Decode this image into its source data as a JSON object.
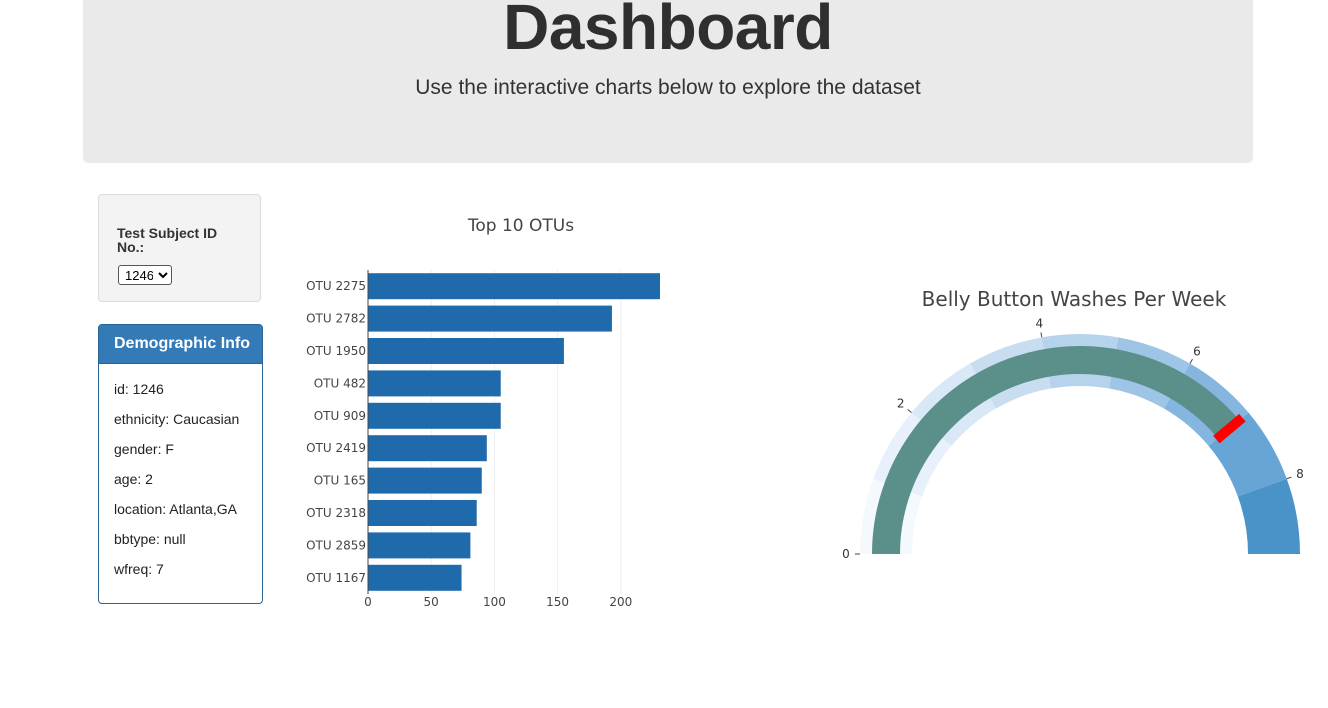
{
  "header": {
    "title": "Dashboard",
    "subtitle": "Use the interactive charts below to explore the dataset"
  },
  "selector": {
    "label": "Test Subject ID No.:",
    "selected": "1246",
    "options": [
      "1246"
    ]
  },
  "demographics": {
    "title": "Demographic Info",
    "rows": [
      "id: 1246",
      "ethnicity: Caucasian",
      "gender: F",
      "age: 2",
      "location: Atlanta,GA",
      "bbtype: null",
      "wfreq: 7"
    ]
  },
  "colors": {
    "bar": "#1f6aab",
    "panel_header": "#337ab7",
    "needle": "#ff0000",
    "gauge_bar": "#5b8f8a"
  },
  "chart_data": [
    {
      "type": "bar",
      "orientation": "horizontal",
      "title": "Top 10 OTUs",
      "categories": [
        "OTU 2275",
        "OTU 2782",
        "OTU 1950",
        "OTU 482",
        "OTU 909",
        "OTU 2419",
        "OTU 165",
        "OTU 2318",
        "OTU 2859",
        "OTU 1167"
      ],
      "values": [
        231,
        193,
        155,
        105,
        105,
        94,
        90,
        86,
        81,
        74
      ],
      "xticks": [
        "0",
        "50",
        "100",
        "150",
        "200"
      ],
      "xlim": [
        0,
        240
      ],
      "grid": true
    },
    {
      "type": "gauge",
      "title": "Belly Button Washes Per Week",
      "value": 7,
      "range": [
        0,
        9
      ],
      "ticks": [
        "0",
        "2",
        "4",
        "6",
        "8"
      ],
      "bands": [
        {
          "from": 0,
          "to": 1,
          "color": "#f4f9fe"
        },
        {
          "from": 1,
          "to": 2,
          "color": "#e8f1fb"
        },
        {
          "from": 2,
          "to": 3,
          "color": "#d9e8f6"
        },
        {
          "from": 3,
          "to": 4,
          "color": "#c8ddf0"
        },
        {
          "from": 4,
          "to": 5,
          "color": "#b6d3ec"
        },
        {
          "from": 5,
          "to": 6,
          "color": "#9fc5e6"
        },
        {
          "from": 6,
          "to": 7,
          "color": "#84b6df"
        },
        {
          "from": 7,
          "to": 8,
          "color": "#66a5d6"
        },
        {
          "from": 8,
          "to": 9,
          "color": "#4a93c8"
        }
      ]
    }
  ]
}
